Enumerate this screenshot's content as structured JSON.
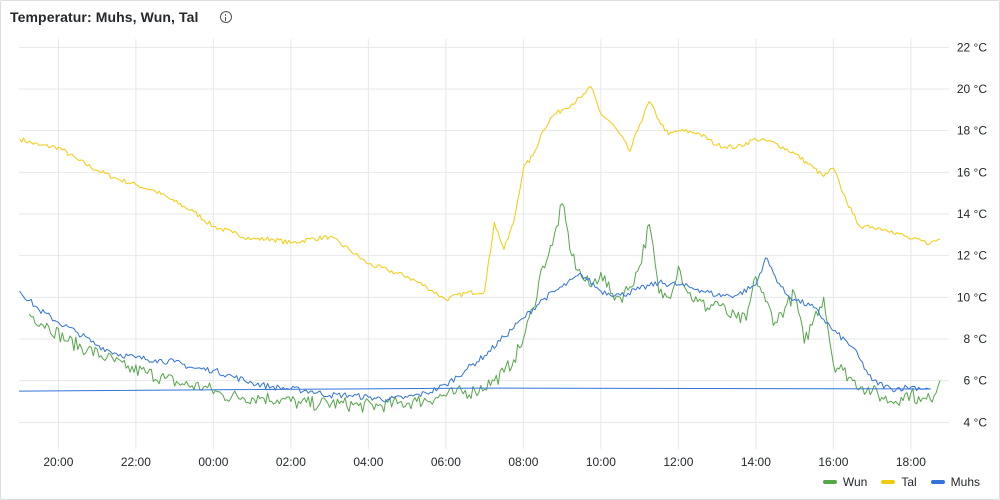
{
  "panel": {
    "title": "Temperatur: Muhs, Wun, Tal"
  },
  "icons": {
    "info": "info-circle-icon"
  },
  "chart_data": {
    "type": "line",
    "title": "Temperatur: Muhs, Wun, Tal",
    "xlabel": "",
    "ylabel": "",
    "x_range": [
      "18:59",
      "19:00+1d"
    ],
    "ylim": [
      3.2,
      22.4
    ],
    "y_ticks": [
      4,
      6,
      8,
      10,
      12,
      14,
      16,
      18,
      20,
      22
    ],
    "y_tick_labels": [
      "4 °C",
      "6 °C",
      "8 °C",
      "10 °C",
      "12 °C",
      "14 °C",
      "16 °C",
      "18 °C",
      "20 °C",
      "22 °C"
    ],
    "x_tick_labels": [
      "20:00",
      "22:00",
      "00:00",
      "02:00",
      "04:00",
      "06:00",
      "08:00",
      "10:00",
      "12:00",
      "14:00",
      "16:00",
      "18:00"
    ],
    "grid": true,
    "legend_position": "bottom-right",
    "series": [
      {
        "name": "Wun",
        "color": "#56a64b",
        "x": [
          "19:15",
          "19:45",
          "20:15",
          "20:45",
          "21:15",
          "21:45",
          "22:15",
          "22:45",
          "23:15",
          "23:45",
          "00:15",
          "00:45",
          "01:15",
          "01:45",
          "02:15",
          "02:45",
          "03:15",
          "03:45",
          "04:15",
          "04:45",
          "05:15",
          "05:45",
          "06:15",
          "06:45",
          "07:15",
          "07:30",
          "07:45",
          "08:00",
          "08:15",
          "08:30",
          "08:45",
          "09:00",
          "09:15",
          "09:30",
          "09:45",
          "10:00",
          "10:15",
          "10:30",
          "10:45",
          "11:00",
          "11:15",
          "11:30",
          "11:45",
          "12:00",
          "12:15",
          "12:30",
          "12:45",
          "13:00",
          "13:15",
          "13:30",
          "13:45",
          "14:00",
          "14:15",
          "14:30",
          "14:45",
          "15:00",
          "15:15",
          "15:30",
          "15:45",
          "16:00",
          "16:15",
          "16:30",
          "16:45",
          "17:00",
          "17:15",
          "17:30",
          "17:45",
          "18:00",
          "18:15",
          "18:30",
          "18:45"
        ],
        "values": [
          9.2,
          8.6,
          7.9,
          7.5,
          7.1,
          6.6,
          6.4,
          6.1,
          5.8,
          5.7,
          5.3,
          5.2,
          5.2,
          5.1,
          4.9,
          4.9,
          4.9,
          4.8,
          4.8,
          4.9,
          5.0,
          5.2,
          5.4,
          5.5,
          6.0,
          6.4,
          7.0,
          8.0,
          9.5,
          11.5,
          12.5,
          14.5,
          12.0,
          11.0,
          10.5,
          11.2,
          10.2,
          10.0,
          10.5,
          11.5,
          13.5,
          10.2,
          10.0,
          11.5,
          10.2,
          9.8,
          9.5,
          9.8,
          9.2,
          9.0,
          8.9,
          11.0,
          9.8,
          8.8,
          9.5,
          10.2,
          7.8,
          9.0,
          10.0,
          6.8,
          6.5,
          6.0,
          5.7,
          5.5,
          5.2,
          5.0,
          5.2,
          5.4,
          5.0,
          5.1,
          6.0
        ]
      },
      {
        "name": "Tal",
        "color": "#f2cc0c",
        "x": [
          "19:00",
          "19:30",
          "20:00",
          "20:30",
          "21:00",
          "21:30",
          "22:00",
          "22:30",
          "23:00",
          "23:30",
          "00:00",
          "00:30",
          "01:00",
          "01:30",
          "02:00",
          "02:30",
          "03:00",
          "03:30",
          "04:00",
          "04:30",
          "05:00",
          "05:30",
          "06:00",
          "06:30",
          "07:00",
          "07:15",
          "07:30",
          "07:45",
          "08:00",
          "08:15",
          "08:30",
          "08:45",
          "09:00",
          "09:30",
          "09:45",
          "10:00",
          "10:15",
          "10:30",
          "10:45",
          "11:00",
          "11:15",
          "11:30",
          "11:45",
          "12:00",
          "12:30",
          "13:00",
          "13:30",
          "14:00",
          "14:30",
          "15:00",
          "15:30",
          "15:45",
          "16:00",
          "16:15",
          "16:30",
          "16:45",
          "17:00",
          "17:30",
          "18:00",
          "18:30",
          "18:45"
        ],
        "values": [
          17.6,
          17.3,
          17.2,
          16.6,
          16.1,
          15.7,
          15.4,
          15.1,
          14.6,
          14.1,
          13.4,
          13.1,
          12.8,
          12.8,
          12.6,
          12.8,
          12.9,
          12.3,
          11.6,
          11.3,
          11.0,
          10.5,
          9.9,
          10.2,
          10.3,
          13.6,
          12.3,
          13.6,
          16.2,
          16.8,
          18.0,
          18.7,
          19.0,
          19.6,
          20.1,
          18.8,
          18.4,
          17.8,
          17.0,
          18.3,
          19.4,
          18.5,
          17.8,
          18.0,
          17.9,
          17.3,
          17.2,
          17.6,
          17.4,
          16.9,
          16.2,
          15.8,
          16.2,
          15.0,
          14.0,
          13.3,
          13.4,
          13.2,
          12.8,
          12.6,
          12.8
        ]
      },
      {
        "name": "Muhs",
        "color": "#3274d9",
        "x": [
          "19:00",
          "19:30",
          "20:00",
          "20:30",
          "21:00",
          "21:30",
          "22:00",
          "22:30",
          "23:00",
          "23:30",
          "00:00",
          "00:30",
          "01:00",
          "01:30",
          "02:00",
          "02:30",
          "03:00",
          "03:30",
          "04:00",
          "04:30",
          "05:00",
          "05:30",
          "06:00",
          "06:30",
          "07:00",
          "07:30",
          "08:00",
          "08:30",
          "09:00",
          "09:30",
          "10:00",
          "10:30",
          "11:00",
          "11:30",
          "12:00",
          "12:30",
          "13:00",
          "13:30",
          "14:00",
          "14:15",
          "14:30",
          "14:45",
          "15:00",
          "15:30",
          "16:00",
          "16:30",
          "17:00",
          "17:30",
          "18:00",
          "18:30",
          "18:59"
        ],
        "values": [
          10.3,
          9.4,
          8.8,
          8.3,
          7.7,
          7.3,
          7.1,
          7.0,
          6.9,
          6.6,
          6.5,
          6.2,
          5.9,
          5.7,
          5.6,
          5.5,
          5.3,
          5.3,
          5.2,
          5.1,
          5.2,
          5.4,
          5.8,
          6.5,
          7.2,
          8.1,
          9.0,
          9.9,
          10.5,
          11.1,
          10.3,
          10.1,
          10.4,
          10.7,
          10.6,
          10.4,
          10.1,
          10.1,
          10.6,
          11.9,
          11.0,
          10.2,
          9.9,
          9.5,
          8.4,
          7.6,
          6.0,
          5.6,
          5.7,
          5.6,
          5.5
        ]
      }
    ]
  }
}
